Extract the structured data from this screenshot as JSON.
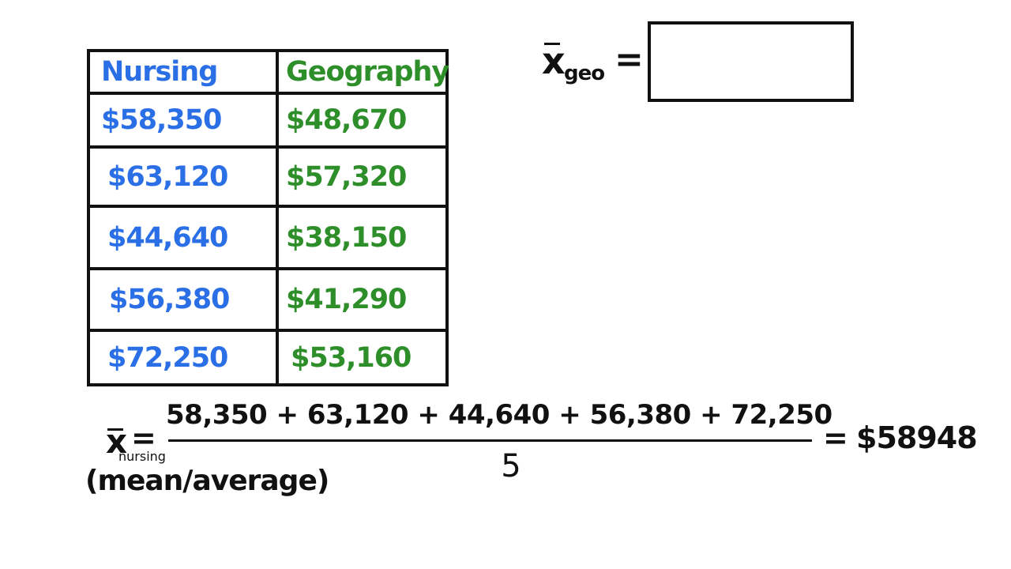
{
  "colors": {
    "nursing": "#2b6fe6",
    "geography": "#2e8f2a",
    "ink": "#111111"
  },
  "table": {
    "headers": {
      "nursing": "Nursing",
      "geography": "Geography"
    },
    "rows": [
      {
        "nursing": "$58,350",
        "geography": "$48,670"
      },
      {
        "nursing": "$63,120",
        "geography": "$57,320"
      },
      {
        "nursing": "$44,640",
        "geography": "$38,150"
      },
      {
        "nursing": "$56,380",
        "geography": "$41,290"
      },
      {
        "nursing": "$72,250",
        "geography": "$53,160"
      }
    ]
  },
  "geo_mean": {
    "symbol": "x",
    "subscript": "geo",
    "equals": "=",
    "answer": ""
  },
  "nursing_mean": {
    "symbol": "x",
    "subscript": "nursing",
    "equals": "=",
    "numerator": "58,350 + 63,120 + 44,640 + 56,380 + 72,250",
    "denominator": "5",
    "result_equals": "=",
    "result": "$58948",
    "caption": "(mean/average)"
  }
}
